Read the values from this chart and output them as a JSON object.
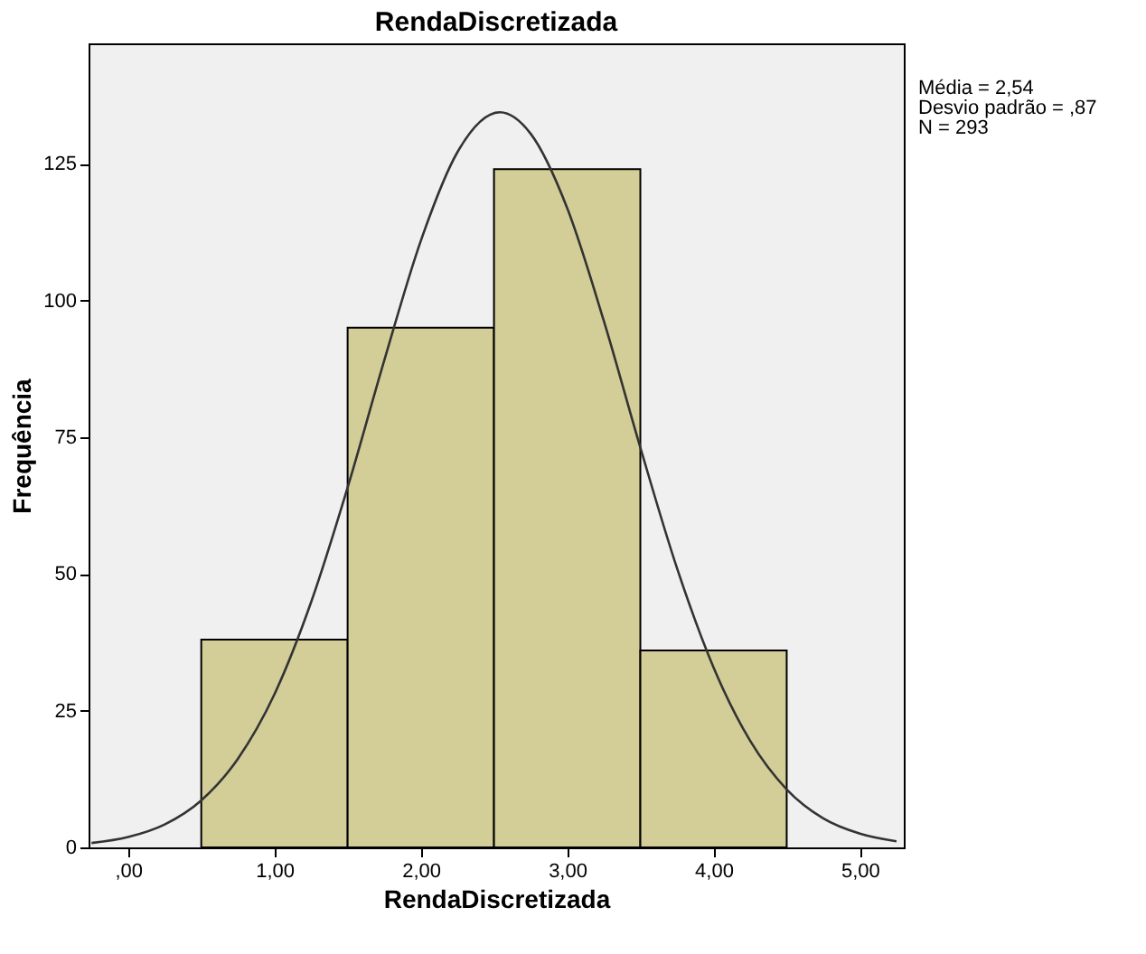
{
  "chart_data": {
    "type": "histogram",
    "title": "RendaDiscretizada",
    "xlabel": "RendaDiscretizada",
    "ylabel": "Frequência",
    "bins": [
      0.5,
      1.5,
      2.5,
      3.5,
      4.5
    ],
    "values": [
      38,
      95,
      124,
      36
    ],
    "color": "#d3ce97",
    "series": [
      {
        "type": "line",
        "color": "#333333",
        "x": [
          -0.25,
          0.0,
          0.25,
          0.5,
          0.75,
          1.0,
          1.25,
          1.5,
          1.75,
          2.0,
          2.25,
          2.54,
          2.75,
          3.0,
          3.25,
          3.5,
          3.75,
          4.0,
          4.25,
          4.5,
          4.75,
          5.0,
          5.25
        ],
        "values": [
          0.8,
          1.9,
          4.2,
          8.6,
          16.2,
          28.0,
          44.8,
          65.8,
          89.0,
          110.9,
          127.1,
          134.4,
          130.5,
          116.9,
          96.3,
          73.1,
          51.1,
          32.9,
          19.5,
          10.6,
          5.3,
          2.5,
          1.1
        ]
      }
    ],
    "xlim": [
      -0.27,
      5.3
    ],
    "xticks": [
      {
        "value": 0,
        "label": ",00"
      },
      {
        "value": 1,
        "label": "1,00"
      },
      {
        "value": 2,
        "label": "2,00"
      },
      {
        "value": 3,
        "label": "3,00"
      },
      {
        "value": 4,
        "label": "4,00"
      },
      {
        "value": 5,
        "label": "5,00"
      }
    ],
    "ylim": [
      0,
      147
    ],
    "yticks": [
      0,
      25,
      50,
      75,
      100,
      125
    ],
    "grid": false,
    "annotations": [
      "Média = 2,54",
      "Desvio padrão = ,87",
      "N = 293"
    ]
  }
}
